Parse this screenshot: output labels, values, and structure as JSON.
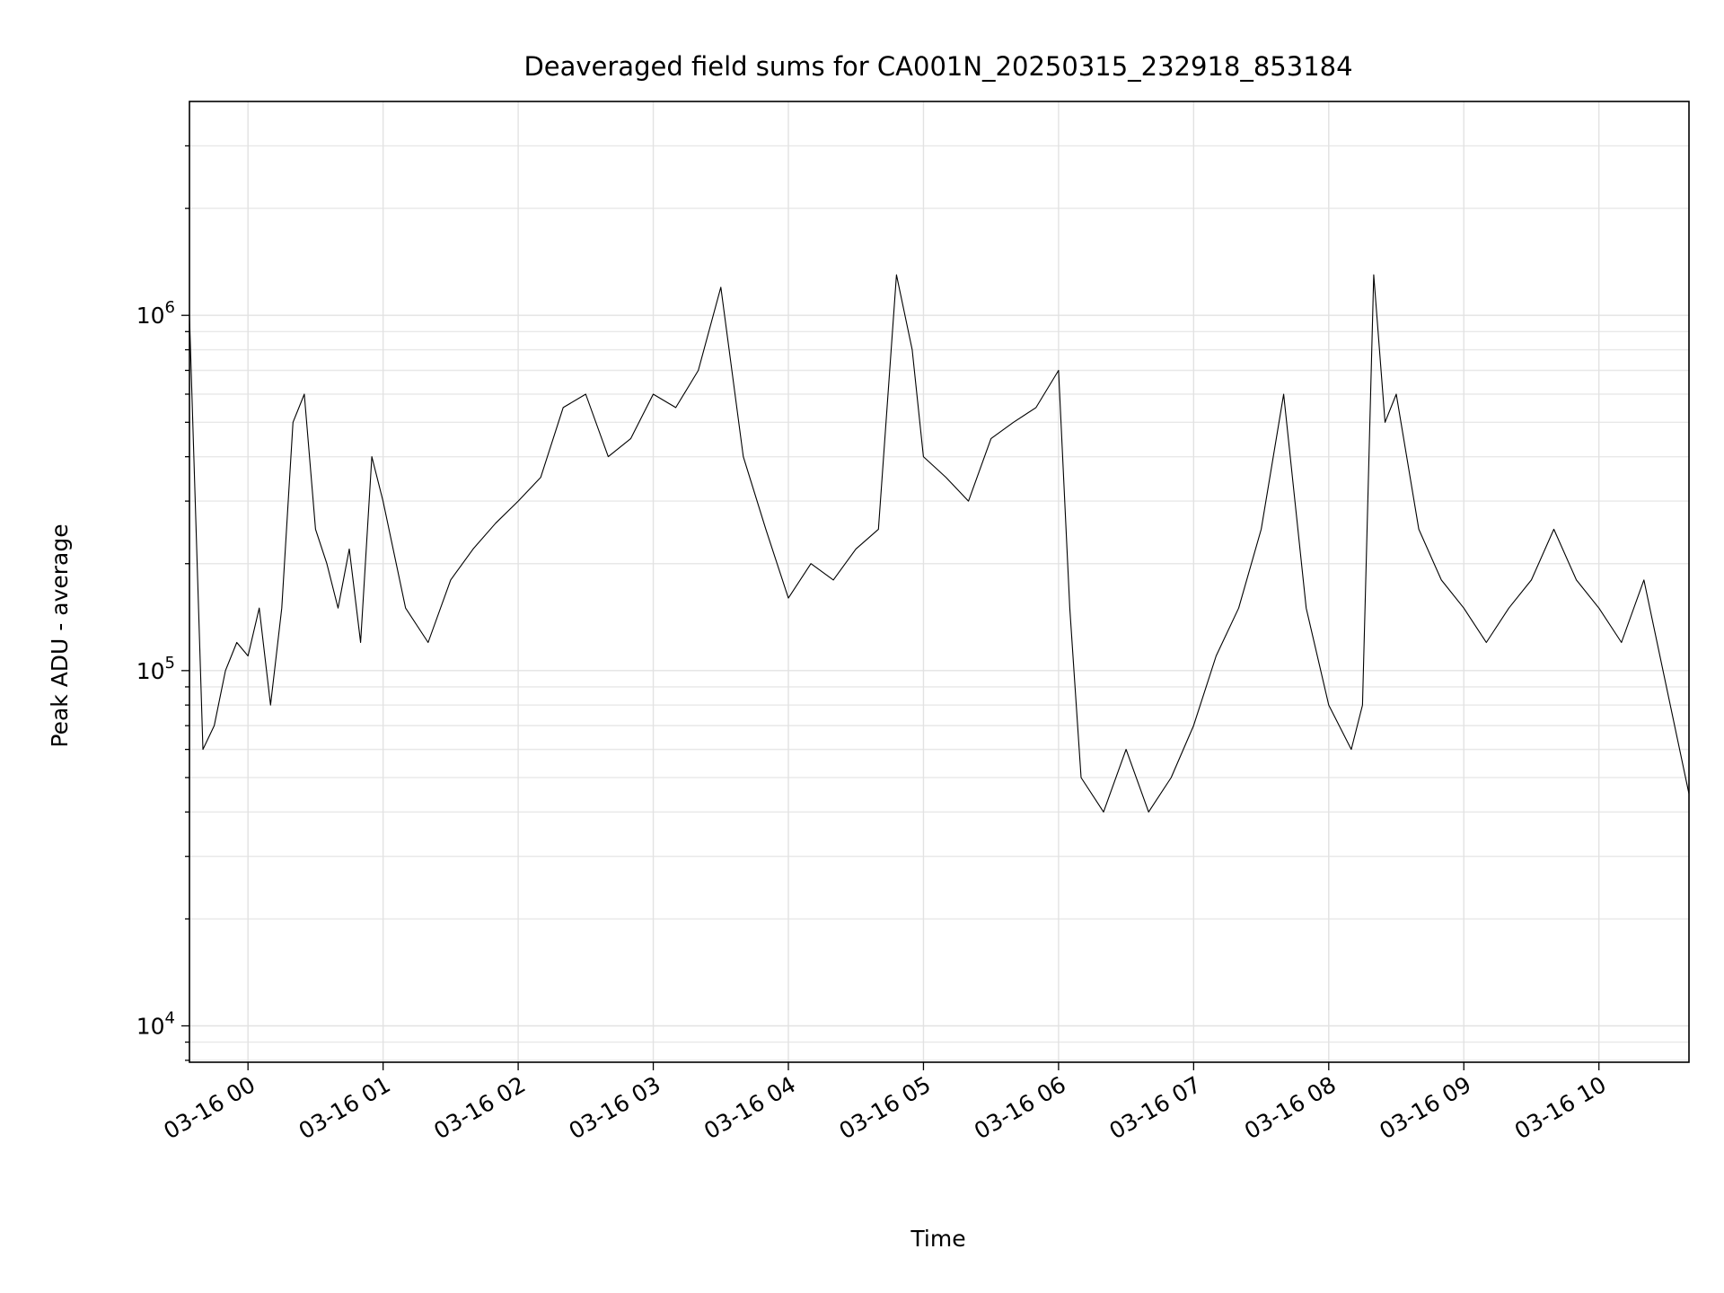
{
  "chart_data": {
    "type": "line",
    "title": "Deaveraged field sums for CA001N_20250315_232918_853184",
    "xlabel": "Time",
    "ylabel": "Peak ADU - average",
    "yscale": "log",
    "grid": true,
    "grid_minor": true,
    "line_color": "#000000",
    "xlim": [
      "2025-03-15T23:34:00",
      "2025-03-16T10:40:00"
    ],
    "ylim": [
      7900,
      4000000
    ],
    "x_ticks": [
      {
        "t": "2025-03-16T00:00:00",
        "label": "03-16 00"
      },
      {
        "t": "2025-03-16T01:00:00",
        "label": "03-16 01"
      },
      {
        "t": "2025-03-16T02:00:00",
        "label": "03-16 02"
      },
      {
        "t": "2025-03-16T03:00:00",
        "label": "03-16 03"
      },
      {
        "t": "2025-03-16T04:00:00",
        "label": "03-16 04"
      },
      {
        "t": "2025-03-16T05:00:00",
        "label": "03-16 05"
      },
      {
        "t": "2025-03-16T06:00:00",
        "label": "03-16 06"
      },
      {
        "t": "2025-03-16T07:00:00",
        "label": "03-16 07"
      },
      {
        "t": "2025-03-16T08:00:00",
        "label": "03-16 08"
      },
      {
        "t": "2025-03-16T09:00:00",
        "label": "03-16 09"
      },
      {
        "t": "2025-03-16T10:00:00",
        "label": "03-16 10"
      }
    ],
    "y_ticks": [
      {
        "value": 10000,
        "base": "10",
        "exp": "4"
      },
      {
        "value": 100000,
        "base": "10",
        "exp": "5"
      },
      {
        "value": 1000000,
        "base": "10",
        "exp": "6"
      }
    ],
    "series": [
      {
        "x": [
          "2025-03-15T23:34:00",
          "2025-03-15T23:40:00",
          "2025-03-15T23:45:00",
          "2025-03-15T23:50:00",
          "2025-03-15T23:55:00",
          "2025-03-16T00:00:00",
          "2025-03-16T00:05:00",
          "2025-03-16T00:10:00",
          "2025-03-16T00:15:00",
          "2025-03-16T00:20:00",
          "2025-03-16T00:25:00",
          "2025-03-16T00:30:00",
          "2025-03-16T00:35:00",
          "2025-03-16T00:40:00",
          "2025-03-16T00:45:00",
          "2025-03-16T00:50:00",
          "2025-03-16T00:55:00",
          "2025-03-16T01:00:00",
          "2025-03-16T01:10:00",
          "2025-03-16T01:20:00",
          "2025-03-16T01:30:00",
          "2025-03-16T01:40:00",
          "2025-03-16T01:50:00",
          "2025-03-16T02:00:00",
          "2025-03-16T02:10:00",
          "2025-03-16T02:20:00",
          "2025-03-16T02:30:00",
          "2025-03-16T02:40:00",
          "2025-03-16T02:50:00",
          "2025-03-16T03:00:00",
          "2025-03-16T03:10:00",
          "2025-03-16T03:20:00",
          "2025-03-16T03:30:00",
          "2025-03-16T03:40:00",
          "2025-03-16T03:50:00",
          "2025-03-16T04:00:00",
          "2025-03-16T04:10:00",
          "2025-03-16T04:20:00",
          "2025-03-16T04:30:00",
          "2025-03-16T04:40:00",
          "2025-03-16T04:48:00",
          "2025-03-16T04:55:00",
          "2025-03-16T05:00:00",
          "2025-03-16T05:10:00",
          "2025-03-16T05:20:00",
          "2025-03-16T05:30:00",
          "2025-03-16T05:40:00",
          "2025-03-16T05:50:00",
          "2025-03-16T06:00:00",
          "2025-03-16T06:05:00",
          "2025-03-16T06:10:00",
          "2025-03-16T06:20:00",
          "2025-03-16T06:30:00",
          "2025-03-16T06:40:00",
          "2025-03-16T06:50:00",
          "2025-03-16T07:00:00",
          "2025-03-16T07:10:00",
          "2025-03-16T07:20:00",
          "2025-03-16T07:30:00",
          "2025-03-16T07:40:00",
          "2025-03-16T07:50:00",
          "2025-03-16T08:00:00",
          "2025-03-16T08:10:00",
          "2025-03-16T08:15:00",
          "2025-03-16T08:20:00",
          "2025-03-16T08:25:00",
          "2025-03-16T08:30:00",
          "2025-03-16T08:40:00",
          "2025-03-16T08:50:00",
          "2025-03-16T09:00:00",
          "2025-03-16T09:10:00",
          "2025-03-16T09:20:00",
          "2025-03-16T09:30:00",
          "2025-03-16T09:40:00",
          "2025-03-16T09:50:00",
          "2025-03-16T10:00:00",
          "2025-03-16T10:10:00",
          "2025-03-16T10:20:00",
          "2025-03-16T10:30:00",
          "2025-03-16T10:40:00"
        ],
        "y": [
          1000000,
          60000,
          70000,
          100000,
          120000,
          110000,
          150000,
          80000,
          150000,
          500000,
          600000,
          250000,
          200000,
          150000,
          220000,
          120000,
          400000,
          300000,
          150000,
          120000,
          180000,
          220000,
          260000,
          300000,
          350000,
          550000,
          600000,
          400000,
          450000,
          600000,
          550000,
          700000,
          1200000,
          400000,
          250000,
          160000,
          200000,
          180000,
          220000,
          250000,
          1300000,
          800000,
          400000,
          350000,
          300000,
          450000,
          500000,
          550000,
          700000,
          150000,
          50000,
          40000,
          60000,
          40000,
          50000,
          70000,
          110000,
          150000,
          250000,
          600000,
          150000,
          80000,
          60000,
          80000,
          1300000,
          500000,
          600000,
          250000,
          180000,
          150000,
          120000,
          150000,
          180000,
          250000,
          180000,
          150000,
          120000,
          180000,
          90000,
          45000
        ]
      }
    ]
  }
}
